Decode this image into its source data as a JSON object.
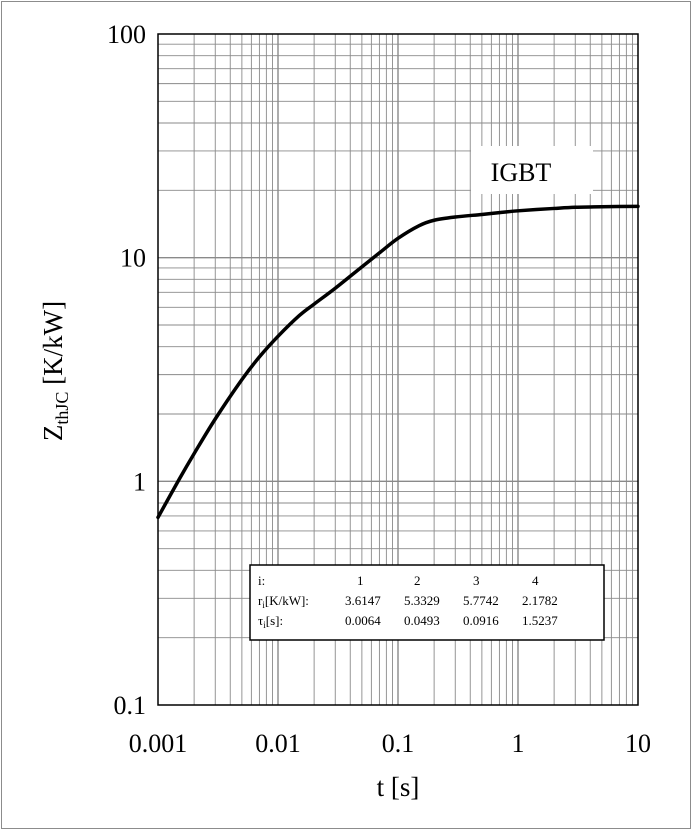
{
  "chart_data": {
    "type": "line",
    "xlabel": "t [s]",
    "ylabel_main": "Z",
    "ylabel_sub": "thJC",
    "ylabel_unit": " [K/kW]",
    "x_scale": "log",
    "y_scale": "log",
    "xlim": [
      0.001,
      10
    ],
    "ylim": [
      0.1,
      100
    ],
    "grid": true,
    "x_tick_labels": [
      "0.001",
      "0.01",
      "0.1",
      "1",
      "10"
    ],
    "y_tick_labels": [
      "0.1",
      "1",
      "10",
      "100"
    ],
    "series": [
      {
        "name": "IGBT",
        "color": "#000000",
        "x": [
          0.001,
          0.0015,
          0.002,
          0.003,
          0.005,
          0.007,
          0.01,
          0.015,
          0.02,
          0.03,
          0.05,
          0.07,
          0.1,
          0.15,
          0.2,
          0.3,
          0.5,
          0.7,
          1,
          2,
          3,
          5,
          10
        ],
        "y": [
          0.69,
          1.02,
          1.33,
          1.9,
          2.85,
          3.6,
          4.45,
          5.5,
          6.2,
          7.3,
          9.1,
          10.5,
          12.2,
          13.9,
          14.7,
          15.2,
          15.6,
          15.9,
          16.2,
          16.6,
          16.8,
          16.9,
          16.95
        ]
      }
    ],
    "annotation_table": {
      "row_labels": [
        "i:",
        "r",
        "τ"
      ],
      "row_label_subs": [
        "",
        "i",
        "i"
      ],
      "row_label_suffixes": [
        "",
        "[K/kW]:",
        "[s]:"
      ],
      "index": [
        "1",
        "2",
        "3",
        "4"
      ],
      "r": [
        "3.6147",
        "5.3329",
        "5.7742",
        "2.1782"
      ],
      "tau": [
        "0.0064",
        "0.0493",
        "0.0916",
        "1.5237"
      ]
    }
  }
}
